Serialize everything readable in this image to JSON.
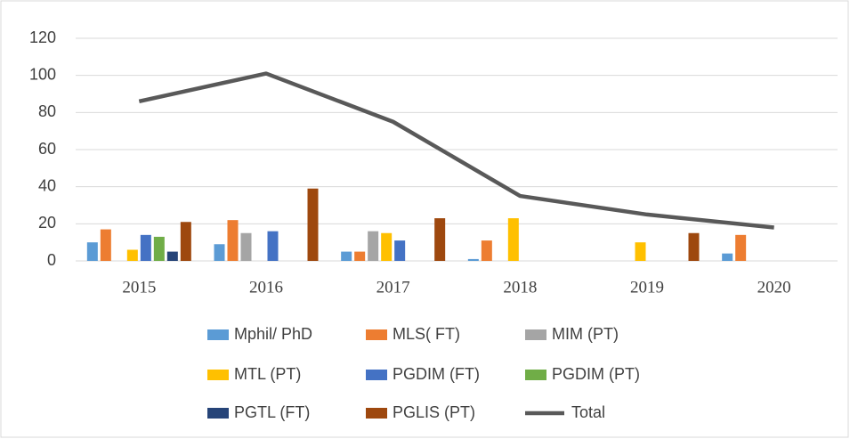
{
  "chart_data": {
    "type": "bar",
    "categories": [
      "2015",
      "2016",
      "2017",
      "2018",
      "2019",
      "2020"
    ],
    "series": [
      {
        "name": "Mphil/ PhD",
        "color": "#5b9bd5",
        "values": [
          10,
          9,
          5,
          1,
          0,
          4
        ]
      },
      {
        "name": "MLS( FT)",
        "color": "#ed7d31",
        "values": [
          17,
          22,
          5,
          11,
          0,
          14
        ]
      },
      {
        "name": "MIM (PT)",
        "color": "#a5a5a5",
        "values": [
          0,
          15,
          16,
          0,
          0,
          0
        ]
      },
      {
        "name": "MTL (PT)",
        "color": "#ffc000",
        "values": [
          6,
          0,
          15,
          23,
          10,
          0
        ]
      },
      {
        "name": "PGDIM (FT)",
        "color": "#4472c4",
        "values": [
          14,
          16,
          11,
          0,
          0,
          0
        ]
      },
      {
        "name": "PGDIM (PT)",
        "color": "#70ad47",
        "values": [
          13,
          0,
          0,
          0,
          0,
          0
        ]
      },
      {
        "name": "PGTL (FT)",
        "color": "#264478",
        "values": [
          5,
          0,
          0,
          0,
          0,
          0
        ]
      },
      {
        "name": "PGLIS (PT)",
        "color": "#9e480e",
        "values": [
          21,
          39,
          23,
          0,
          15,
          0
        ]
      },
      {
        "name": "Total",
        "type": "line",
        "color": "#595959",
        "values": [
          86,
          101,
          75,
          35,
          25,
          18
        ]
      }
    ],
    "ylim": [
      0,
      120
    ],
    "yticks": [
      0,
      20,
      40,
      60,
      80,
      100,
      120
    ],
    "grid": true,
    "legend": "bottom"
  }
}
